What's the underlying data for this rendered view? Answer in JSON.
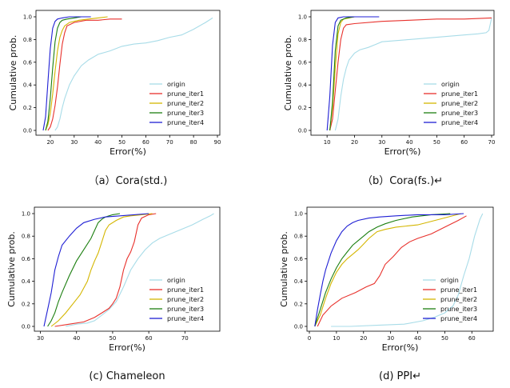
{
  "chart_data": [
    {
      "type": "line",
      "xlabel": "Error(%)",
      "ylabel": "Cumulative prob.",
      "caption": "（a）Cora(std.)",
      "xlim": [
        15,
        90
      ],
      "xticks": [
        20,
        30,
        40,
        50,
        60,
        70,
        80,
        90
      ],
      "ylim": [
        0,
        1.0
      ],
      "yticks": [
        0.0,
        0.2,
        0.4,
        0.6,
        0.8,
        1.0
      ],
      "legend": "lower-right",
      "series": [
        {
          "name": "origin",
          "color": "#a8dce8",
          "x": [
            22,
            23,
            24,
            25,
            26,
            28,
            30,
            33,
            36,
            40,
            45,
            50,
            55,
            60,
            65,
            70,
            75,
            80,
            85,
            88
          ],
          "y": [
            0.0,
            0.03,
            0.1,
            0.2,
            0.28,
            0.4,
            0.48,
            0.57,
            0.62,
            0.67,
            0.7,
            0.74,
            0.76,
            0.77,
            0.79,
            0.82,
            0.84,
            0.89,
            0.95,
            0.99
          ]
        },
        {
          "name": "prune_iter1",
          "color": "#e8312c",
          "x": [
            19,
            20,
            21,
            22,
            23,
            24,
            25,
            26,
            27,
            30,
            35,
            40,
            45,
            50
          ],
          "y": [
            0.0,
            0.03,
            0.1,
            0.22,
            0.38,
            0.58,
            0.76,
            0.86,
            0.92,
            0.95,
            0.97,
            0.97,
            0.98,
            0.98
          ]
        },
        {
          "name": "prune_iter2",
          "color": "#d4b600",
          "x": [
            18,
            19,
            20,
            21,
            22,
            23,
            24,
            25,
            26,
            28,
            32,
            36,
            40,
            44
          ],
          "y": [
            0.0,
            0.05,
            0.15,
            0.32,
            0.52,
            0.7,
            0.82,
            0.88,
            0.92,
            0.95,
            0.97,
            0.98,
            0.99,
            1.0
          ]
        },
        {
          "name": "prune_iter3",
          "color": "#1c7f10",
          "x": [
            18,
            19,
            20,
            21,
            22,
            23,
            24,
            25,
            27,
            30,
            33
          ],
          "y": [
            0.0,
            0.08,
            0.28,
            0.55,
            0.78,
            0.9,
            0.95,
            0.97,
            0.98,
            0.99,
            1.0
          ]
        },
        {
          "name": "prune_iter4",
          "color": "#1f1fd4",
          "x": [
            17,
            18,
            19,
            20,
            21,
            22,
            23,
            25,
            28,
            32,
            37
          ],
          "y": [
            0.0,
            0.12,
            0.42,
            0.72,
            0.9,
            0.96,
            0.98,
            0.99,
            1.0,
            1.0,
            1.0
          ]
        }
      ]
    },
    {
      "type": "line",
      "xlabel": "Error(%)",
      "ylabel": "Cumulative prob.",
      "caption": "（b）Cora(fs.)↵",
      "xlim": [
        5,
        70
      ],
      "xticks": [
        10,
        20,
        30,
        40,
        50,
        60,
        70
      ],
      "ylim": [
        0,
        1.0
      ],
      "yticks": [
        0.0,
        0.2,
        0.4,
        0.6,
        0.8,
        1.0
      ],
      "legend": "lower-right",
      "series": [
        {
          "name": "origin",
          "color": "#a8dce8",
          "x": [
            13,
            14,
            15,
            16,
            17,
            18,
            20,
            22,
            25,
            28,
            30,
            35,
            40,
            50,
            60,
            65,
            68,
            69,
            70
          ],
          "y": [
            0.0,
            0.1,
            0.3,
            0.45,
            0.55,
            0.62,
            0.68,
            0.71,
            0.73,
            0.76,
            0.78,
            0.79,
            0.8,
            0.82,
            0.84,
            0.85,
            0.86,
            0.88,
            0.99
          ]
        },
        {
          "name": "prune_iter1",
          "color": "#e8312c",
          "x": [
            11,
            12,
            13,
            14,
            15,
            16,
            17,
            20,
            30,
            40,
            50,
            60,
            70
          ],
          "y": [
            0.0,
            0.1,
            0.35,
            0.6,
            0.8,
            0.9,
            0.93,
            0.94,
            0.96,
            0.97,
            0.98,
            0.98,
            0.99
          ]
        },
        {
          "name": "prune_iter2",
          "color": "#d4b600",
          "x": [
            11,
            12,
            13,
            14,
            15,
            16,
            18,
            20
          ],
          "y": [
            0.0,
            0.2,
            0.55,
            0.85,
            0.95,
            0.98,
            0.99,
            1.0
          ]
        },
        {
          "name": "prune_iter3",
          "color": "#1c7f10",
          "x": [
            11,
            12,
            13,
            14,
            15,
            17,
            20
          ],
          "y": [
            0.0,
            0.25,
            0.7,
            0.92,
            0.97,
            0.99,
            1.0
          ]
        },
        {
          "name": "prune_iter4",
          "color": "#1f1fd4",
          "x": [
            10,
            11,
            12,
            13,
            14,
            16,
            20,
            25,
            29
          ],
          "y": [
            0.0,
            0.3,
            0.75,
            0.95,
            0.99,
            1.0,
            1.0,
            1.0,
            1.0
          ]
        }
      ]
    },
    {
      "type": "line",
      "xlabel": "Error(%)",
      "ylabel": "Cumulative prob.",
      "caption": "(c)  Chameleon",
      "xlim": [
        29,
        79
      ],
      "xticks": [
        30,
        40,
        50,
        60,
        70
      ],
      "ylim": [
        0,
        1.0
      ],
      "yticks": [
        0.0,
        0.2,
        0.4,
        0.6,
        0.8,
        1.0
      ],
      "legend": "lower-right",
      "series": [
        {
          "name": "origin",
          "color": "#a8dce8",
          "x": [
            37,
            40,
            43,
            45,
            47,
            49,
            51,
            53,
            55,
            57,
            59,
            61,
            63,
            66,
            69,
            72,
            75,
            77,
            78
          ],
          "y": [
            0.0,
            0.02,
            0.03,
            0.05,
            0.1,
            0.15,
            0.22,
            0.35,
            0.5,
            0.6,
            0.68,
            0.74,
            0.78,
            0.82,
            0.86,
            0.9,
            0.95,
            0.98,
            1.0
          ]
        },
        {
          "name": "prune_iter1",
          "color": "#e8312c",
          "x": [
            34,
            38,
            42,
            45,
            47,
            49,
            50,
            51,
            52,
            53,
            54,
            55,
            56,
            57,
            58,
            60,
            62
          ],
          "y": [
            0.0,
            0.02,
            0.04,
            0.08,
            0.12,
            0.16,
            0.2,
            0.25,
            0.35,
            0.5,
            0.6,
            0.66,
            0.75,
            0.9,
            0.96,
            0.99,
            1.0
          ]
        },
        {
          "name": "prune_iter2",
          "color": "#d4b600",
          "x": [
            33,
            35,
            37,
            39,
            41,
            43,
            44,
            45,
            46,
            47,
            48,
            49,
            51,
            53,
            55,
            58,
            61
          ],
          "y": [
            0.0,
            0.05,
            0.12,
            0.2,
            0.28,
            0.4,
            0.5,
            0.58,
            0.65,
            0.75,
            0.85,
            0.9,
            0.94,
            0.97,
            0.98,
            0.99,
            1.0
          ]
        },
        {
          "name": "prune_iter3",
          "color": "#1c7f10",
          "x": [
            32,
            33,
            34,
            35,
            36,
            38,
            40,
            42,
            44,
            45,
            46,
            47,
            48,
            49,
            50,
            52
          ],
          "y": [
            0.0,
            0.05,
            0.12,
            0.22,
            0.3,
            0.45,
            0.58,
            0.68,
            0.78,
            0.85,
            0.92,
            0.95,
            0.97,
            0.98,
            0.99,
            1.0
          ]
        },
        {
          "name": "prune_iter4",
          "color": "#1f1fd4",
          "x": [
            31,
            32,
            33,
            34,
            35,
            36,
            38,
            40,
            42,
            45,
            48,
            52,
            56,
            60
          ],
          "y": [
            0.0,
            0.15,
            0.3,
            0.5,
            0.62,
            0.72,
            0.8,
            0.87,
            0.92,
            0.95,
            0.97,
            0.98,
            0.99,
            1.0
          ]
        }
      ]
    },
    {
      "type": "line",
      "xlabel": "Error(%)",
      "ylabel": "Cumulative prob.",
      "caption": "(d)  PPI↵",
      "xlim": [
        0,
        67
      ],
      "xticks": [
        0,
        10,
        20,
        30,
        40,
        50,
        60
      ],
      "ylim": [
        0,
        1.0
      ],
      "yticks": [
        0.0,
        0.2,
        0.4,
        0.6,
        0.8,
        1.0
      ],
      "legend": "lower-right",
      "series": [
        {
          "name": "origin",
          "color": "#a8dce8",
          "x": [
            8,
            15,
            25,
            35,
            42,
            46,
            50,
            53,
            55,
            57,
            59,
            61,
            63,
            64
          ],
          "y": [
            0.0,
            0.0,
            0.01,
            0.02,
            0.05,
            0.08,
            0.12,
            0.18,
            0.28,
            0.45,
            0.6,
            0.8,
            0.95,
            1.0
          ]
        },
        {
          "name": "prune_iter1",
          "color": "#e8312c",
          "x": [
            3,
            5,
            8,
            12,
            17,
            21,
            24,
            26,
            28,
            31,
            34,
            37,
            40,
            45,
            50,
            55,
            58
          ],
          "y": [
            0.0,
            0.1,
            0.18,
            0.25,
            0.3,
            0.35,
            0.38,
            0.45,
            0.55,
            0.62,
            0.7,
            0.75,
            0.78,
            0.82,
            0.88,
            0.94,
            0.98
          ]
        },
        {
          "name": "prune_iter2",
          "color": "#d4b600",
          "x": [
            2,
            4,
            6,
            8,
            10,
            12,
            14,
            16,
            18,
            20,
            22,
            25,
            28,
            32,
            40,
            48,
            56
          ],
          "y": [
            0.0,
            0.1,
            0.25,
            0.38,
            0.48,
            0.55,
            0.6,
            0.64,
            0.68,
            0.73,
            0.78,
            0.84,
            0.86,
            0.88,
            0.9,
            0.95,
            1.0
          ]
        },
        {
          "name": "prune_iter3",
          "color": "#1c7f10",
          "x": [
            2,
            4,
            6,
            8,
            10,
            12,
            14,
            16,
            18,
            20,
            22,
            25,
            28,
            32,
            38,
            45,
            52
          ],
          "y": [
            0.0,
            0.15,
            0.3,
            0.42,
            0.52,
            0.6,
            0.66,
            0.72,
            0.76,
            0.8,
            0.84,
            0.88,
            0.91,
            0.94,
            0.97,
            0.99,
            1.0
          ]
        },
        {
          "name": "prune_iter4",
          "color": "#1f1fd4",
          "x": [
            2,
            3,
            4,
            5,
            6,
            8,
            10,
            12,
            14,
            16,
            18,
            22,
            26,
            32,
            40,
            50,
            57
          ],
          "y": [
            0.0,
            0.15,
            0.28,
            0.4,
            0.5,
            0.65,
            0.76,
            0.84,
            0.89,
            0.92,
            0.94,
            0.96,
            0.97,
            0.98,
            0.99,
            0.99,
            1.0
          ]
        }
      ]
    }
  ]
}
